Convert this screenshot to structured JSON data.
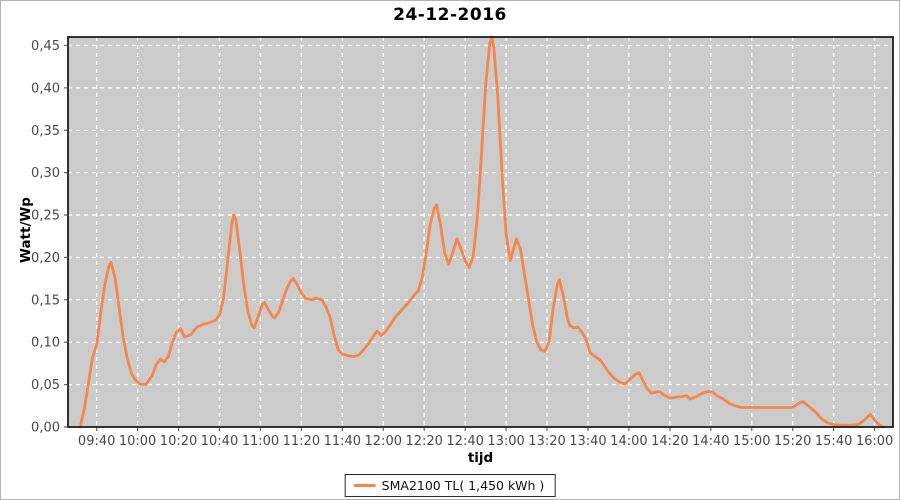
{
  "title": "24-12-2016",
  "legend": {
    "label": "SMA2100 TL( 1,450 kWh )"
  },
  "colors": {
    "series": "#F6874B",
    "plot_bg": "#CBCBCB",
    "grid": "#FFFFFF",
    "plot_border": "#1e1e1e",
    "tick": "#666666",
    "tick_label": "#4a4a4a"
  },
  "chart_data": {
    "type": "line",
    "title": "24-12-2016",
    "xlabel": "tijd",
    "ylabel": "Watt/Wp",
    "grid": true,
    "legend_position": "bottom",
    "x_domain_minutes": [
      566,
      969
    ],
    "ylim": [
      0,
      0.46
    ],
    "x_ticks": [
      "09:40",
      "10:00",
      "10:20",
      "10:40",
      "11:00",
      "11:20",
      "11:40",
      "12:00",
      "12:20",
      "12:40",
      "13:00",
      "13:20",
      "13:40",
      "14:00",
      "14:20",
      "14:40",
      "15:00",
      "15:20",
      "15:40",
      "16:00"
    ],
    "y_tick_values": [
      0.0,
      0.05,
      0.1,
      0.15,
      0.2,
      0.25,
      0.3,
      0.35,
      0.4,
      0.45
    ],
    "y_tick_labels": [
      "0,00",
      "0,05",
      "0,10",
      "0,15",
      "0,20",
      "0,25",
      "0,30",
      "0,35",
      "0,40",
      "0,45"
    ],
    "series": [
      {
        "name": "SMA2100 TL( 1,450 kWh )",
        "points": [
          [
            "09:32",
            0.0
          ],
          [
            "09:34",
            0.022
          ],
          [
            "09:36",
            0.052
          ],
          [
            "09:38",
            0.082
          ],
          [
            "09:40",
            0.097
          ],
          [
            "09:42",
            0.135
          ],
          [
            "09:44",
            0.168
          ],
          [
            "09:46",
            0.19
          ],
          [
            "09:47",
            0.194
          ],
          [
            "09:49",
            0.176
          ],
          [
            "09:51",
            0.14
          ],
          [
            "09:53",
            0.105
          ],
          [
            "09:55",
            0.08
          ],
          [
            "09:57",
            0.063
          ],
          [
            "09:59",
            0.055
          ],
          [
            "10:01",
            0.051
          ],
          [
            "10:04",
            0.05
          ],
          [
            "10:07",
            0.06
          ],
          [
            "10:09",
            0.073
          ],
          [
            "10:11",
            0.08
          ],
          [
            "10:13",
            0.077
          ],
          [
            "10:15",
            0.083
          ],
          [
            "10:17",
            0.1
          ],
          [
            "10:19",
            0.112
          ],
          [
            "10:21",
            0.116
          ],
          [
            "10:23",
            0.106
          ],
          [
            "10:26",
            0.109
          ],
          [
            "10:29",
            0.118
          ],
          [
            "10:32",
            0.121
          ],
          [
            "10:35",
            0.123
          ],
          [
            "10:38",
            0.126
          ],
          [
            "10:40",
            0.132
          ],
          [
            "10:42",
            0.152
          ],
          [
            "10:44",
            0.196
          ],
          [
            "10:46",
            0.24
          ],
          [
            "10:47",
            0.25
          ],
          [
            "10:48",
            0.244
          ],
          [
            "10:50",
            0.205
          ],
          [
            "10:52",
            0.165
          ],
          [
            "10:54",
            0.135
          ],
          [
            "10:56",
            0.119
          ],
          [
            "10:57",
            0.117
          ],
          [
            "10:59",
            0.131
          ],
          [
            "11:01",
            0.145
          ],
          [
            "11:02",
            0.147
          ],
          [
            "11:04",
            0.138
          ],
          [
            "11:06",
            0.13
          ],
          [
            "11:07",
            0.129
          ],
          [
            "11:09",
            0.136
          ],
          [
            "11:11",
            0.15
          ],
          [
            "11:13",
            0.164
          ],
          [
            "11:15",
            0.173
          ],
          [
            "11:16",
            0.175
          ],
          [
            "11:18",
            0.168
          ],
          [
            "11:20",
            0.158
          ],
          [
            "11:22",
            0.152
          ],
          [
            "11:25",
            0.15
          ],
          [
            "11:27",
            0.152
          ],
          [
            "11:30",
            0.15
          ],
          [
            "11:32",
            0.142
          ],
          [
            "11:34",
            0.13
          ],
          [
            "11:36",
            0.108
          ],
          [
            "11:38",
            0.091
          ],
          [
            "11:40",
            0.086
          ],
          [
            "11:43",
            0.084
          ],
          [
            "11:46",
            0.083
          ],
          [
            "11:48",
            0.085
          ],
          [
            "11:50",
            0.09
          ],
          [
            "11:52",
            0.096
          ],
          [
            "11:54",
            0.103
          ],
          [
            "11:56",
            0.11
          ],
          [
            "11:57",
            0.113
          ],
          [
            "11:59",
            0.108
          ],
          [
            "12:01",
            0.112
          ],
          [
            "12:03",
            0.119
          ],
          [
            "12:06",
            0.13
          ],
          [
            "12:09",
            0.138
          ],
          [
            "12:12",
            0.146
          ],
          [
            "12:14",
            0.152
          ],
          [
            "12:16",
            0.158
          ],
          [
            "12:17",
            0.16
          ],
          [
            "12:19",
            0.176
          ],
          [
            "12:21",
            0.206
          ],
          [
            "12:23",
            0.24
          ],
          [
            "12:25",
            0.258
          ],
          [
            "12:26",
            0.262
          ],
          [
            "12:28",
            0.238
          ],
          [
            "12:30",
            0.205
          ],
          [
            "12:32",
            0.192
          ],
          [
            "12:34",
            0.206
          ],
          [
            "12:36",
            0.222
          ],
          [
            "12:38",
            0.21
          ],
          [
            "12:40",
            0.196
          ],
          [
            "12:42",
            0.188
          ],
          [
            "12:44",
            0.202
          ],
          [
            "12:46",
            0.248
          ],
          [
            "12:48",
            0.322
          ],
          [
            "12:50",
            0.402
          ],
          [
            "12:52",
            0.452
          ],
          [
            "12:53",
            0.46
          ],
          [
            "12:54",
            0.448
          ],
          [
            "12:56",
            0.388
          ],
          [
            "12:58",
            0.3
          ],
          [
            "13:00",
            0.228
          ],
          [
            "13:02",
            0.196
          ],
          [
            "13:04",
            0.213
          ],
          [
            "13:05",
            0.222
          ],
          [
            "13:07",
            0.21
          ],
          [
            "13:09",
            0.18
          ],
          [
            "13:11",
            0.15
          ],
          [
            "13:13",
            0.12
          ],
          [
            "13:15",
            0.1
          ],
          [
            "13:17",
            0.091
          ],
          [
            "13:19",
            0.089
          ],
          [
            "13:21",
            0.101
          ],
          [
            "13:23",
            0.14
          ],
          [
            "13:25",
            0.168
          ],
          [
            "13:26",
            0.174
          ],
          [
            "13:28",
            0.154
          ],
          [
            "13:30",
            0.128
          ],
          [
            "13:31",
            0.12
          ],
          [
            "13:33",
            0.117
          ],
          [
            "13:35",
            0.118
          ],
          [
            "13:37",
            0.112
          ],
          [
            "13:39",
            0.104
          ],
          [
            "13:41",
            0.088
          ],
          [
            "13:44",
            0.082
          ],
          [
            "13:46",
            0.079
          ],
          [
            "13:48",
            0.072
          ],
          [
            "13:50",
            0.065
          ],
          [
            "13:53",
            0.057
          ],
          [
            "13:56",
            0.052
          ],
          [
            "13:58",
            0.051
          ],
          [
            "14:00",
            0.055
          ],
          [
            "14:03",
            0.062
          ],
          [
            "14:05",
            0.064
          ],
          [
            "14:07",
            0.054
          ],
          [
            "14:09",
            0.045
          ],
          [
            "14:11",
            0.04
          ],
          [
            "14:13",
            0.041
          ],
          [
            "14:15",
            0.042
          ],
          [
            "14:17",
            0.038
          ],
          [
            "14:20",
            0.034
          ],
          [
            "14:23",
            0.035
          ],
          [
            "14:26",
            0.036
          ],
          [
            "14:28",
            0.037
          ],
          [
            "14:30",
            0.033
          ],
          [
            "14:33",
            0.036
          ],
          [
            "14:36",
            0.04
          ],
          [
            "14:39",
            0.042
          ],
          [
            "14:41",
            0.041
          ],
          [
            "14:43",
            0.037
          ],
          [
            "14:46",
            0.033
          ],
          [
            "14:49",
            0.028
          ],
          [
            "14:52",
            0.025
          ],
          [
            "14:55",
            0.023
          ],
          [
            "15:00",
            0.023
          ],
          [
            "15:05",
            0.023
          ],
          [
            "15:10",
            0.023
          ],
          [
            "15:15",
            0.023
          ],
          [
            "15:20",
            0.023
          ],
          [
            "15:23",
            0.028
          ],
          [
            "15:25",
            0.03
          ],
          [
            "15:28",
            0.024
          ],
          [
            "15:31",
            0.018
          ],
          [
            "15:34",
            0.01
          ],
          [
            "15:37",
            0.005
          ],
          [
            "15:40",
            0.003
          ],
          [
            "15:44",
            0.002
          ],
          [
            "15:48",
            0.002
          ],
          [
            "15:52",
            0.003
          ],
          [
            "15:55",
            0.008
          ],
          [
            "15:57",
            0.013
          ],
          [
            "15:58",
            0.015
          ],
          [
            "16:00",
            0.008
          ],
          [
            "16:02",
            0.003
          ],
          [
            "16:04",
            0.0
          ]
        ]
      }
    ]
  }
}
